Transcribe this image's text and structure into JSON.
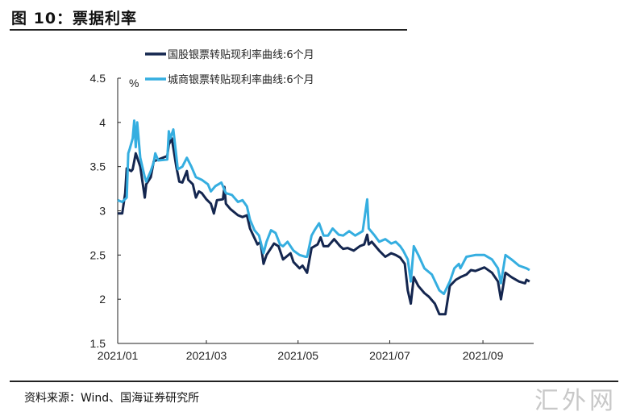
{
  "header": {
    "title": "图 10：票据利率"
  },
  "footer": {
    "source": "资料来源：Wind、国海证券研究所",
    "watermark": "汇外网"
  },
  "chart_data": {
    "type": "line",
    "title": "",
    "ylabel": "%",
    "xlabel": "",
    "ylim": [
      1.5,
      4.5
    ],
    "yticks": [
      "1.5",
      "2",
      "2.5",
      "3",
      "3.5",
      "4",
      "4.5"
    ],
    "xlim": [
      "2021-01-01",
      "2021-10-01"
    ],
    "xticks": [
      {
        "label": "2021/01",
        "date": "2021-01-01"
      },
      {
        "label": "2021/03",
        "date": "2021-03-01"
      },
      {
        "label": "2021/05",
        "date": "2021-05-01"
      },
      {
        "label": "2021/07",
        "date": "2021-07-01"
      },
      {
        "label": "2021/09",
        "date": "2021-09-01"
      }
    ],
    "grid": false,
    "legend": "top-center",
    "series": [
      {
        "name": "国股银票转贴现利率曲线:6个月",
        "color": "#14264f",
        "points": [
          [
            "01-01",
            2.97
          ],
          [
            "01-04",
            2.97
          ],
          [
            "01-06",
            3.2
          ],
          [
            "01-07",
            3.48
          ],
          [
            "01-10",
            3.45
          ],
          [
            "01-11",
            3.47
          ],
          [
            "01-13",
            3.65
          ],
          [
            "01-16",
            3.5
          ],
          [
            "01-19",
            3.15
          ],
          [
            "01-20",
            3.3
          ],
          [
            "01-23",
            3.38
          ],
          [
            "01-25",
            3.56
          ],
          [
            "01-28",
            3.58
          ],
          [
            "02-03",
            3.62
          ],
          [
            "02-04",
            3.75
          ],
          [
            "02-06",
            3.82
          ],
          [
            "02-09",
            3.5
          ],
          [
            "02-11",
            3.33
          ],
          [
            "02-13",
            3.32
          ],
          [
            "02-16",
            3.45
          ],
          [
            "02-17",
            3.35
          ],
          [
            "02-20",
            3.3
          ],
          [
            "02-22",
            3.15
          ],
          [
            "02-24",
            3.22
          ],
          [
            "02-26",
            3.2
          ],
          [
            "03-01",
            3.13
          ],
          [
            "03-04",
            3.08
          ],
          [
            "03-06",
            2.97
          ],
          [
            "03-08",
            3.12
          ],
          [
            "03-12",
            3.13
          ],
          [
            "03-13",
            3.27
          ],
          [
            "03-14",
            3.08
          ],
          [
            "03-17",
            3.02
          ],
          [
            "03-22",
            2.95
          ],
          [
            "03-25",
            2.93
          ],
          [
            "03-28",
            2.95
          ],
          [
            "03-30",
            2.8
          ],
          [
            "04-04",
            2.62
          ],
          [
            "04-06",
            2.65
          ],
          [
            "04-08",
            2.4
          ],
          [
            "04-10",
            2.5
          ],
          [
            "04-15",
            2.63
          ],
          [
            "04-18",
            2.6
          ],
          [
            "04-21",
            2.45
          ],
          [
            "04-26",
            2.52
          ],
          [
            "04-28",
            2.42
          ],
          [
            "05-02",
            2.35
          ],
          [
            "05-04",
            2.38
          ],
          [
            "05-07",
            2.3
          ],
          [
            "05-10",
            2.58
          ],
          [
            "05-14",
            2.62
          ],
          [
            "05-16",
            2.7
          ],
          [
            "05-18",
            2.6
          ],
          [
            "05-21",
            2.6
          ],
          [
            "05-25",
            2.68
          ],
          [
            "05-29",
            2.6
          ],
          [
            "05-31",
            2.57
          ],
          [
            "06-03",
            2.58
          ],
          [
            "06-07",
            2.55
          ],
          [
            "06-11",
            2.6
          ],
          [
            "06-14",
            2.62
          ],
          [
            "06-16",
            2.73
          ],
          [
            "06-17",
            2.62
          ],
          [
            "06-19",
            2.65
          ],
          [
            "06-24",
            2.55
          ],
          [
            "06-28",
            2.48
          ],
          [
            "07-02",
            2.52
          ],
          [
            "07-05",
            2.5
          ],
          [
            "07-08",
            2.47
          ],
          [
            "07-11",
            2.4
          ],
          [
            "07-13",
            2.1
          ],
          [
            "07-15",
            1.95
          ],
          [
            "07-17",
            2.25
          ],
          [
            "07-20",
            2.15
          ],
          [
            "07-24",
            2.07
          ],
          [
            "07-27",
            2.03
          ],
          [
            "07-31",
            1.95
          ],
          [
            "08-03",
            1.83
          ],
          [
            "08-07",
            1.83
          ],
          [
            "08-10",
            2.15
          ],
          [
            "08-14",
            2.22
          ],
          [
            "08-17",
            2.25
          ],
          [
            "08-21",
            2.28
          ],
          [
            "08-24",
            2.33
          ],
          [
            "08-27",
            2.32
          ],
          [
            "09-02",
            2.36
          ],
          [
            "09-07",
            2.3
          ],
          [
            "09-11",
            2.2
          ],
          [
            "09-13",
            2.0
          ],
          [
            "09-16",
            2.3
          ],
          [
            "09-20",
            2.25
          ],
          [
            "09-25",
            2.2
          ],
          [
            "09-29",
            2.18
          ],
          [
            "09-30",
            2.22
          ],
          [
            "10-02",
            2.2
          ]
        ]
      },
      {
        "name": "城商银票转贴现利率曲线:6个月",
        "color": "#35aee0",
        "points": [
          [
            "01-01",
            3.12
          ],
          [
            "01-04",
            3.1
          ],
          [
            "01-07",
            3.15
          ],
          [
            "01-08",
            3.65
          ],
          [
            "01-09",
            3.7
          ],
          [
            "01-11",
            3.82
          ],
          [
            "01-12",
            4.02
          ],
          [
            "01-13",
            3.72
          ],
          [
            "01-14",
            4.0
          ],
          [
            "01-16",
            3.6
          ],
          [
            "01-19",
            3.38
          ],
          [
            "01-20",
            3.33
          ],
          [
            "01-23",
            3.45
          ],
          [
            "01-25",
            3.55
          ],
          [
            "01-26",
            3.65
          ],
          [
            "01-28",
            3.57
          ],
          [
            "02-03",
            3.58
          ],
          [
            "02-04",
            3.9
          ],
          [
            "02-05",
            3.82
          ],
          [
            "02-07",
            3.92
          ],
          [
            "02-10",
            3.47
          ],
          [
            "02-13",
            3.5
          ],
          [
            "02-16",
            3.6
          ],
          [
            "02-19",
            3.5
          ],
          [
            "02-22",
            3.38
          ],
          [
            "02-26",
            3.35
          ],
          [
            "03-02",
            3.3
          ],
          [
            "03-04",
            3.22
          ],
          [
            "03-07",
            3.28
          ],
          [
            "03-11",
            3.32
          ],
          [
            "03-14",
            3.2
          ],
          [
            "03-18",
            3.18
          ],
          [
            "03-22",
            3.1
          ],
          [
            "03-25",
            3.12
          ],
          [
            "03-28",
            3.05
          ],
          [
            "03-30",
            2.9
          ],
          [
            "04-02",
            2.78
          ],
          [
            "04-05",
            2.72
          ],
          [
            "04-08",
            2.52
          ],
          [
            "04-10",
            2.65
          ],
          [
            "04-13",
            2.78
          ],
          [
            "04-16",
            2.75
          ],
          [
            "04-19",
            2.62
          ],
          [
            "04-21",
            2.6
          ],
          [
            "04-24",
            2.65
          ],
          [
            "04-28",
            2.55
          ],
          [
            "05-02",
            2.5
          ],
          [
            "05-06",
            2.48
          ],
          [
            "05-07",
            2.48
          ],
          [
            "05-10",
            2.72
          ],
          [
            "05-12",
            2.78
          ],
          [
            "05-15",
            2.86
          ],
          [
            "05-18",
            2.72
          ],
          [
            "05-21",
            2.72
          ],
          [
            "05-24",
            2.8
          ],
          [
            "05-28",
            2.73
          ],
          [
            "05-31",
            2.72
          ],
          [
            "06-04",
            2.77
          ],
          [
            "06-08",
            2.72
          ],
          [
            "06-13",
            2.77
          ],
          [
            "06-16",
            3.13
          ],
          [
            "06-17",
            2.8
          ],
          [
            "06-21",
            2.72
          ],
          [
            "06-24",
            2.65
          ],
          [
            "06-28",
            2.68
          ],
          [
            "07-02",
            2.63
          ],
          [
            "07-05",
            2.65
          ],
          [
            "07-08",
            2.6
          ],
          [
            "07-10",
            2.55
          ],
          [
            "07-13",
            2.45
          ],
          [
            "07-15",
            2.2
          ],
          [
            "07-17",
            2.6
          ],
          [
            "07-20",
            2.5
          ],
          [
            "07-24",
            2.35
          ],
          [
            "07-29",
            2.28
          ],
          [
            "08-03",
            2.1
          ],
          [
            "08-06",
            2.06
          ],
          [
            "08-10",
            2.2
          ],
          [
            "08-13",
            2.35
          ],
          [
            "08-16",
            2.4
          ],
          [
            "08-17",
            2.35
          ],
          [
            "08-21",
            2.48
          ],
          [
            "08-27",
            2.5
          ],
          [
            "09-02",
            2.5
          ],
          [
            "09-07",
            2.45
          ],
          [
            "09-11",
            2.35
          ],
          [
            "09-13",
            2.18
          ],
          [
            "09-16",
            2.5
          ],
          [
            "09-20",
            2.45
          ],
          [
            "09-25",
            2.38
          ],
          [
            "09-30",
            2.35
          ],
          [
            "10-02",
            2.33
          ]
        ]
      }
    ]
  }
}
